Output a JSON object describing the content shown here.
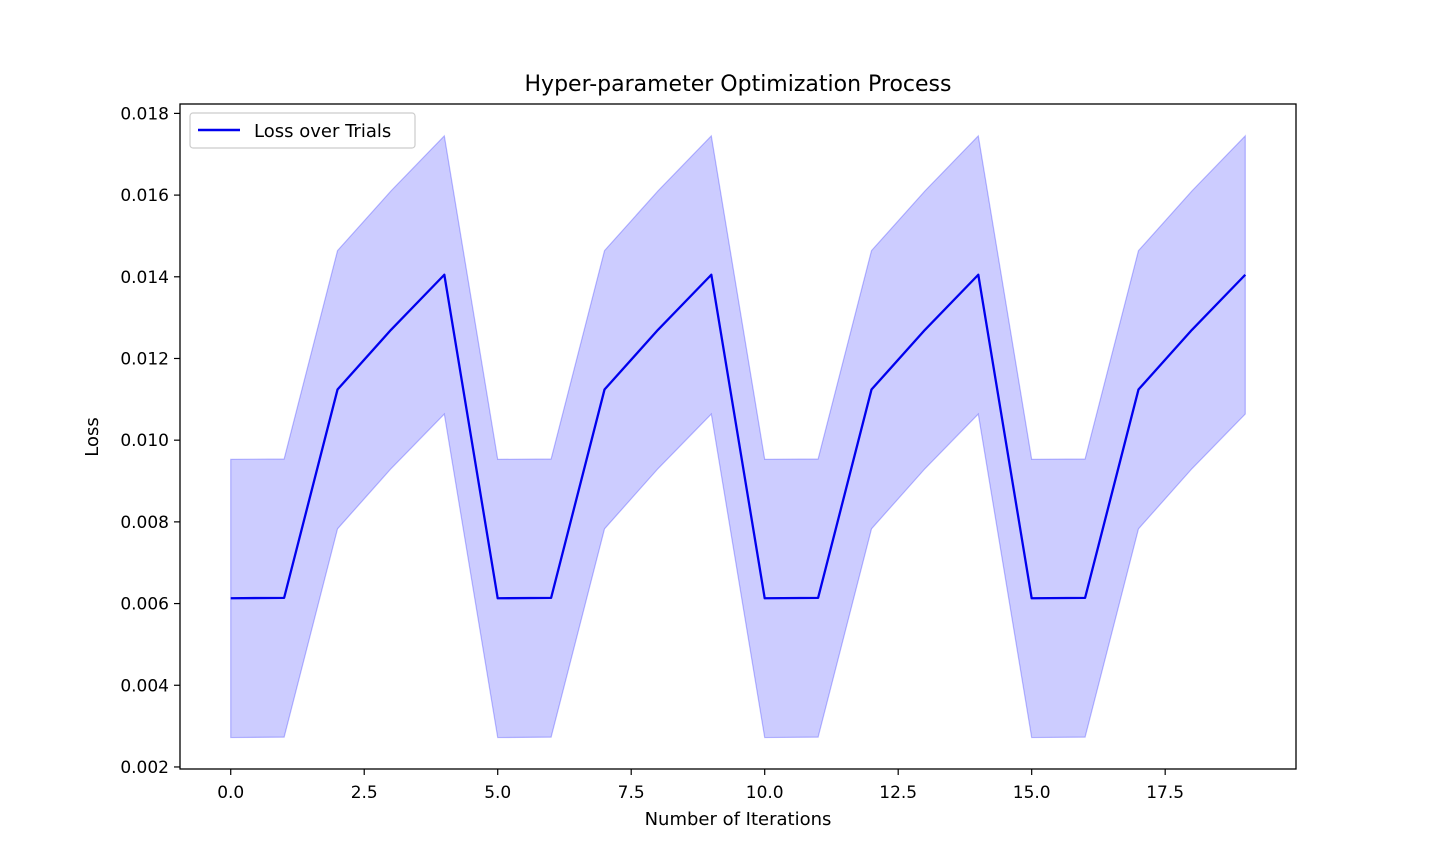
{
  "chart_data": {
    "type": "line",
    "title": "Hyper-parameter Optimization Process",
    "xlabel": "Number of Iterations",
    "ylabel": "Loss",
    "xlim": [
      -0.95,
      19.95
    ],
    "ylim": [
      0.00195,
      0.01823
    ],
    "xticks": [
      0.0,
      2.5,
      5.0,
      7.5,
      10.0,
      12.5,
      15.0,
      17.5
    ],
    "xtick_labels": [
      "0.0",
      "2.5",
      "5.0",
      "7.5",
      "10.0",
      "12.5",
      "15.0",
      "17.5"
    ],
    "yticks": [
      0.002,
      0.004,
      0.006,
      0.008,
      0.01,
      0.012,
      0.014,
      0.016,
      0.018
    ],
    "ytick_labels": [
      "0.002",
      "0.004",
      "0.006",
      "0.008",
      "0.010",
      "0.012",
      "0.014",
      "0.016",
      "0.018"
    ],
    "grid": false,
    "legend": {
      "placement": "upper-left",
      "entries": [
        "Loss over Trials"
      ]
    },
    "x": [
      0,
      1,
      2,
      3,
      4,
      5,
      6,
      7,
      8,
      9,
      10,
      11,
      12,
      13,
      14,
      15,
      16,
      17,
      18,
      19
    ],
    "series": [
      {
        "name": "Loss over Trials",
        "color": "#0000ee",
        "values": [
          0.00613,
          0.00614,
          0.01124,
          0.0127,
          0.01405,
          0.00613,
          0.00614,
          0.01124,
          0.0127,
          0.01405,
          0.00613,
          0.00614,
          0.01124,
          0.0127,
          0.01405,
          0.00613,
          0.00614,
          0.01124,
          0.0127,
          0.01405
        ]
      }
    ],
    "band": {
      "color": "#0000ff",
      "opacity": 0.2,
      "lower": [
        0.00272,
        0.00273,
        0.00783,
        0.0093,
        0.01064,
        0.00272,
        0.00273,
        0.00783,
        0.0093,
        0.01064,
        0.00272,
        0.00273,
        0.00783,
        0.0093,
        0.01064,
        0.00272,
        0.00273,
        0.00783,
        0.0093,
        0.01064
      ],
      "upper": [
        0.00953,
        0.00954,
        0.01464,
        0.0161,
        0.01745,
        0.00953,
        0.00954,
        0.01464,
        0.0161,
        0.01745,
        0.00953,
        0.00954,
        0.01464,
        0.0161,
        0.01745,
        0.00953,
        0.00954,
        0.01464,
        0.0161,
        0.01745
      ]
    }
  }
}
